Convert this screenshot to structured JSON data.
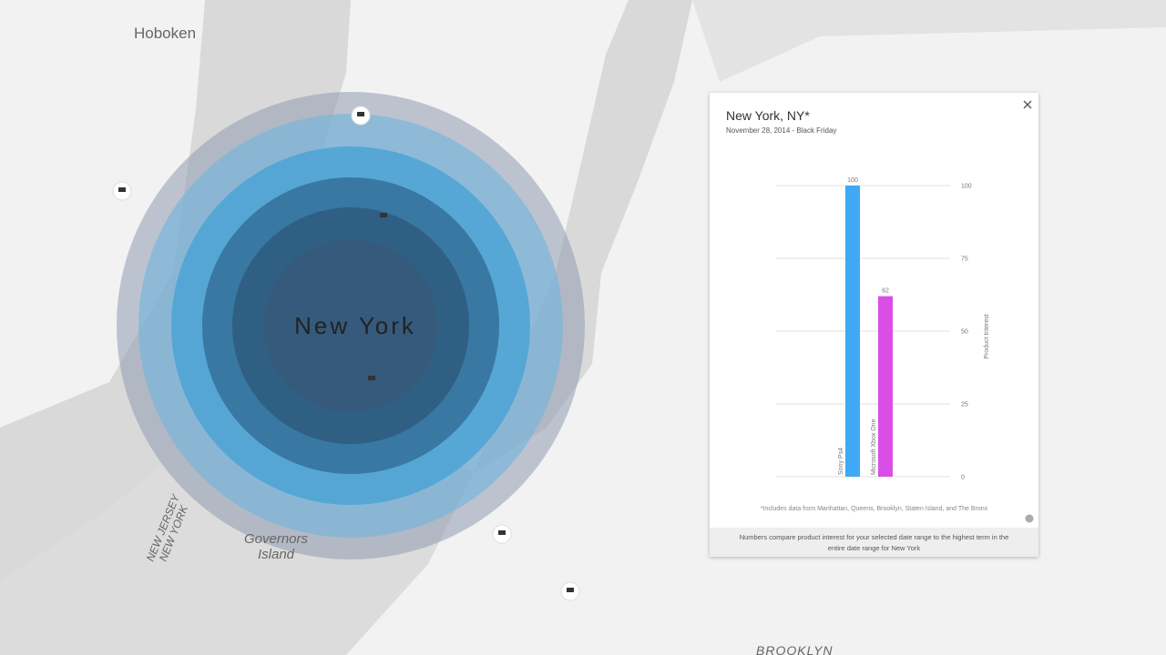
{
  "map": {
    "labels": {
      "hoboken": "Hoboken",
      "city": "New York",
      "governors_1": "Governors",
      "governors_2": "Island",
      "nj": "NEW JERSEY",
      "ny": "NEW YORK",
      "brooklyn": "BROOKLYN"
    }
  },
  "panel": {
    "title": "New York, NY*",
    "subtitle": "November 28, 2014 - Black Friday",
    "footnote": "*Includes data from Manhattan, Queens, Brooklyn, Staten Island, and The Bronx",
    "footer": "Numbers compare product interest for your selected date range to the highest term in the entire date range for New York"
  },
  "chart_data": {
    "type": "bar",
    "categories": [
      "Sony Ps4",
      "Microsoft Xbox One"
    ],
    "values": [
      100,
      62
    ],
    "colors": [
      "#3fa9f5",
      "#d94ee6"
    ],
    "ylabel": "Product Interest",
    "ylim": [
      0,
      100
    ],
    "yticks": [
      0,
      25,
      50,
      75,
      100
    ],
    "grid": true
  }
}
